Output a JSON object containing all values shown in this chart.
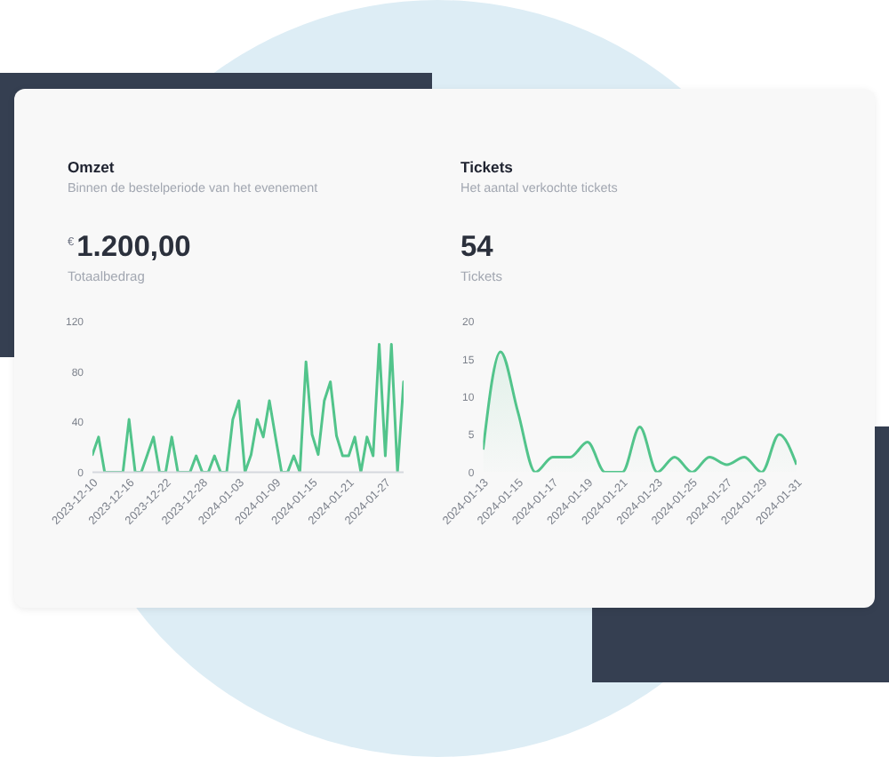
{
  "chart_data": [
    {
      "type": "line",
      "title": "Omzet",
      "subtitle": "Binnen de bestelperiode van het evenement",
      "annotations": [
        "€",
        "1.200,00",
        "Totaalbedrag"
      ],
      "x": [
        "2023-12-10",
        "2023-12-11",
        "2023-12-12",
        "2023-12-13",
        "2023-12-14",
        "2023-12-15",
        "2023-12-16",
        "2023-12-17",
        "2023-12-18",
        "2023-12-19",
        "2023-12-20",
        "2023-12-21",
        "2023-12-22",
        "2023-12-23",
        "2023-12-24",
        "2023-12-25",
        "2023-12-26",
        "2023-12-27",
        "2023-12-28",
        "2023-12-29",
        "2023-12-30",
        "2023-12-31",
        "2024-01-01",
        "2024-01-02",
        "2024-01-03",
        "2024-01-04",
        "2024-01-05",
        "2024-01-06",
        "2024-01-07",
        "2024-01-08",
        "2024-01-09",
        "2024-01-10",
        "2024-01-11",
        "2024-01-12",
        "2024-01-13",
        "2024-01-14",
        "2024-01-15",
        "2024-01-16",
        "2024-01-17",
        "2024-01-18",
        "2024-01-19",
        "2024-01-20",
        "2024-01-21",
        "2024-01-22",
        "2024-01-23",
        "2024-01-24",
        "2024-01-25",
        "2024-01-26",
        "2024-01-27",
        "2024-01-28",
        "2024-01-29",
        "2024-01-30"
      ],
      "values": [
        14,
        28,
        0,
        0,
        0,
        0,
        42,
        0,
        0,
        14,
        28,
        0,
        0,
        28,
        0,
        0,
        0,
        13,
        0,
        0,
        13,
        0,
        0,
        42,
        57,
        0,
        14,
        42,
        28,
        57,
        28,
        0,
        0,
        13,
        0,
        88,
        30,
        14,
        57,
        72,
        29,
        13,
        13,
        28,
        0,
        28,
        13,
        102,
        13,
        102,
        0,
        72
      ],
      "color": "#52c48b",
      "xlim": [
        "2023-12-10",
        "2024-01-30"
      ],
      "xticks": [
        "2023-12-10",
        "2023-12-16",
        "2023-12-22",
        "2023-12-28",
        "2024-01-03",
        "2024-01-09",
        "2024-01-15",
        "2024-01-21",
        "2024-01-27"
      ],
      "ylim": [
        0,
        120
      ],
      "yticks": [
        0,
        40,
        80,
        120
      ]
    },
    {
      "type": "area",
      "title": "Tickets",
      "subtitle": "Het aantal verkochte tickets",
      "annotations": [
        "54",
        "Tickets"
      ],
      "x": [
        "2024-01-13",
        "2024-01-14",
        "2024-01-15",
        "2024-01-16",
        "2024-01-17",
        "2024-01-18",
        "2024-01-19",
        "2024-01-20",
        "2024-01-21",
        "2024-01-22",
        "2024-01-23",
        "2024-01-24",
        "2024-01-25",
        "2024-01-26",
        "2024-01-27",
        "2024-01-28",
        "2024-01-29",
        "2024-01-30",
        "2024-01-31"
      ],
      "values": [
        3,
        16,
        8,
        0,
        2,
        2,
        4,
        0,
        0,
        6,
        0,
        2,
        0,
        2,
        1,
        2,
        0,
        5,
        1
      ],
      "color": "#52c48b",
      "xlim": [
        "2024-01-13",
        "2024-01-31"
      ],
      "xticks": [
        "2024-01-13",
        "2024-01-15",
        "2024-01-17",
        "2024-01-19",
        "2024-01-21",
        "2024-01-23",
        "2024-01-25",
        "2024-01-27",
        "2024-01-29",
        "2024-01-31"
      ],
      "ylim": [
        0,
        20
      ],
      "yticks": [
        0,
        5,
        10,
        15,
        20
      ]
    }
  ]
}
